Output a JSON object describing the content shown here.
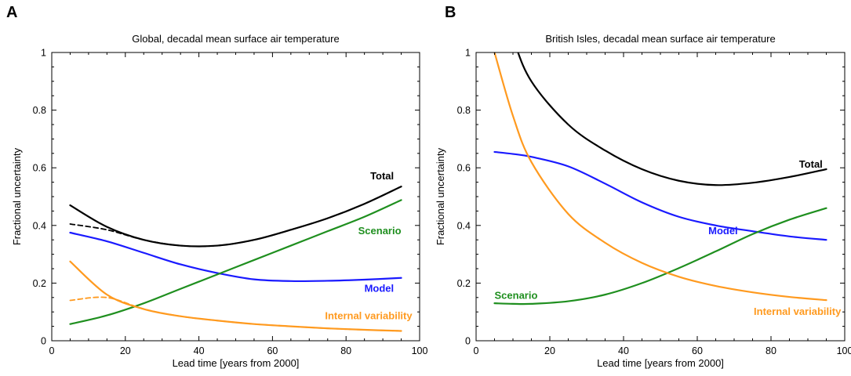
{
  "colors": {
    "total": "#000000",
    "model": "#1a1aff",
    "scenario": "#1f8f1f",
    "internal": "#ff9a1f"
  },
  "chart_data": [
    {
      "panel": "A",
      "type": "line",
      "title": "Global, decadal mean surface air temperature",
      "xlabel": "Lead time  [years from 2000]",
      "ylabel": "Fractional uncertainty",
      "xlim": [
        0,
        100
      ],
      "ylim": [
        0,
        1
      ],
      "xticks": [
        0,
        20,
        40,
        60,
        80,
        100
      ],
      "yticks": [
        0,
        0.2,
        0.4,
        0.6,
        0.8,
        1
      ],
      "x": [
        5,
        15,
        25,
        35,
        45,
        55,
        65,
        75,
        85,
        95
      ],
      "series": [
        {
          "name": "Total",
          "color_key": "total",
          "dashed": false,
          "values": [
            0.47,
            0.395,
            0.35,
            0.33,
            0.33,
            0.35,
            0.385,
            0.425,
            0.475,
            0.535
          ],
          "label_x": 93,
          "label_y": 0.56
        },
        {
          "color_key": "total",
          "dashed": true,
          "values": [
            0.405,
            0.385,
            0.35,
            0.33,
            0.33,
            0.35,
            0.385,
            0.425,
            0.475,
            0.535
          ]
        },
        {
          "name": "Model",
          "color_key": "model",
          "dashed": false,
          "values": [
            0.375,
            0.345,
            0.305,
            0.265,
            0.235,
            0.213,
            0.207,
            0.208,
            0.212,
            0.218
          ],
          "label_x": 93,
          "label_y": 0.17
        },
        {
          "name": "Scenario",
          "color_key": "scenario",
          "dashed": false,
          "values": [
            0.058,
            0.088,
            0.13,
            0.18,
            0.23,
            0.28,
            0.33,
            0.38,
            0.43,
            0.488
          ],
          "label_x": 95,
          "label_y": 0.37
        },
        {
          "name": "Internal variability",
          "color_key": "internal",
          "dashed": false,
          "values": [
            0.275,
            0.16,
            0.11,
            0.085,
            0.07,
            0.058,
            0.05,
            0.043,
            0.038,
            0.034
          ],
          "label_x": 98,
          "label_y": 0.075
        },
        {
          "color_key": "internal",
          "dashed": true,
          "values": [
            0.14,
            0.15,
            0.11,
            0.085,
            0.07,
            0.058,
            0.05,
            0.043,
            0.038,
            0.034
          ]
        }
      ]
    },
    {
      "panel": "B",
      "type": "line",
      "title": "British Isles, decadal mean surface air temperature",
      "xlabel": "Lead time  [years from 2000]",
      "ylabel": "Fractional uncertainty",
      "xlim": [
        0,
        100
      ],
      "ylim": [
        0,
        1
      ],
      "xticks": [
        0,
        20,
        40,
        60,
        80,
        100
      ],
      "yticks": [
        0,
        0.2,
        0.4,
        0.6,
        0.8,
        1
      ],
      "x": [
        5,
        10,
        15,
        25,
        35,
        45,
        55,
        65,
        75,
        85,
        95
      ],
      "series": [
        {
          "name": "Total",
          "color_key": "total",
          "dashed": false,
          "values": [
            1.25,
            1.05,
            0.9,
            0.75,
            0.66,
            0.595,
            0.555,
            0.54,
            0.548,
            0.568,
            0.595
          ],
          "label_x": 94,
          "label_y": 0.6
        },
        {
          "name": "Model",
          "color_key": "model",
          "dashed": false,
          "values": [
            0.655,
            0.648,
            0.638,
            0.605,
            0.545,
            0.48,
            0.43,
            0.4,
            0.38,
            0.362,
            0.35
          ],
          "label_x": 67,
          "label_y": 0.37
        },
        {
          "name": "Scenario",
          "color_key": "scenario",
          "dashed": false,
          "values": [
            0.13,
            0.128,
            0.128,
            0.137,
            0.16,
            0.2,
            0.252,
            0.31,
            0.37,
            0.42,
            0.46
          ],
          "label_x": 5,
          "label_y": 0.145
        },
        {
          "name": "Internal variability",
          "color_key": "internal",
          "dashed": false,
          "values": [
            1.0,
            0.78,
            0.62,
            0.44,
            0.34,
            0.27,
            0.222,
            0.19,
            0.168,
            0.152,
            0.141
          ],
          "label_x": 99,
          "label_y": 0.09
        }
      ]
    }
  ]
}
